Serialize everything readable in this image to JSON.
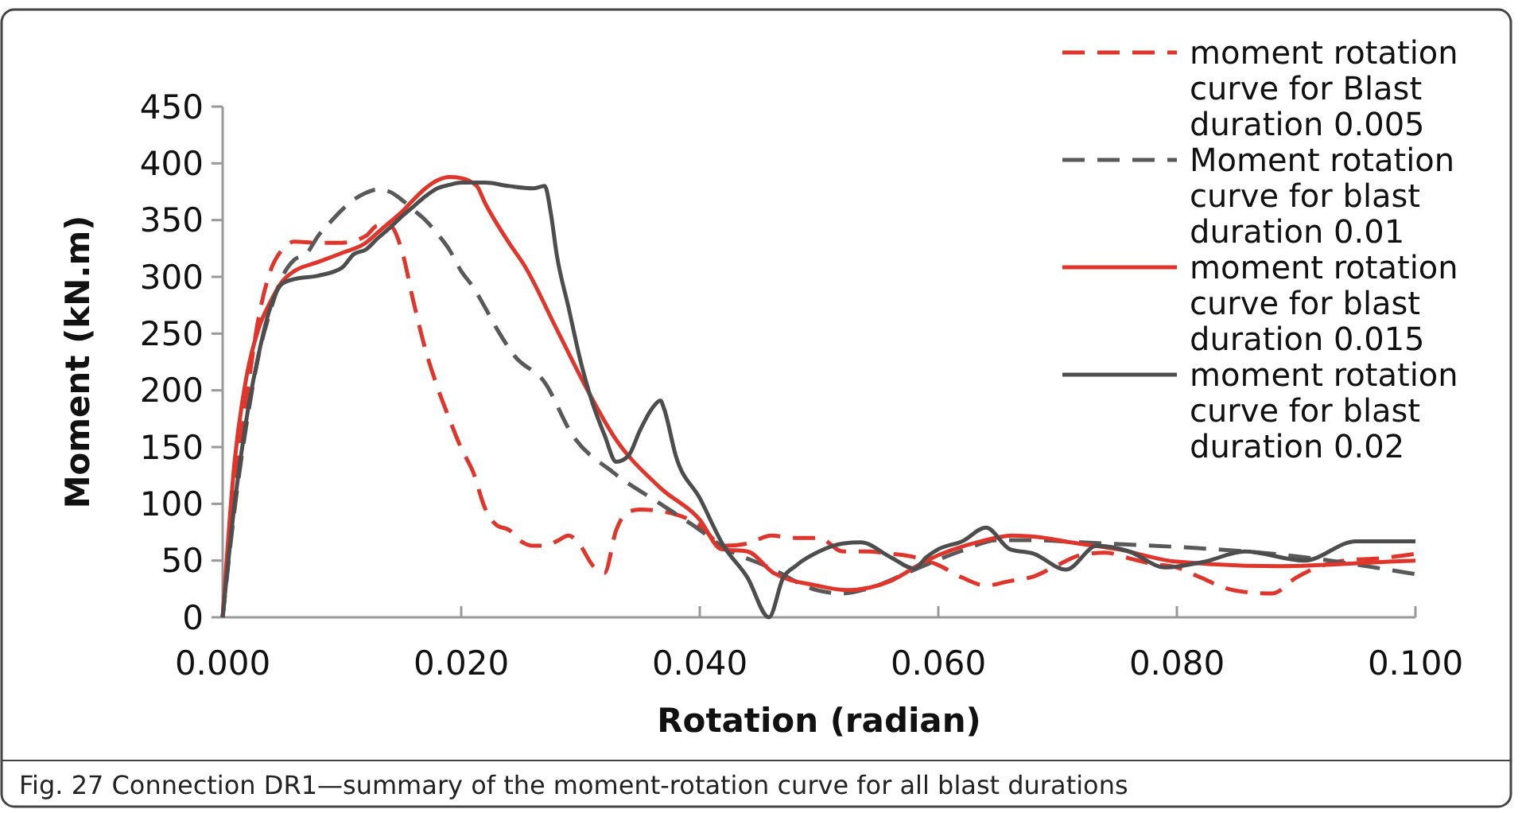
{
  "chart_data": {
    "type": "line",
    "xlabel": "Rotation  (radian)",
    "ylabel": "Moment (kN.m)",
    "xlim": [
      0,
      0.1
    ],
    "ylim": [
      0,
      450
    ],
    "xticks": [
      {
        "value": 0,
        "label": "0.000"
      },
      {
        "value": 0.02,
        "label": "0.020"
      },
      {
        "value": 0.04,
        "label": "0.040"
      },
      {
        "value": 0.06,
        "label": "0.060"
      },
      {
        "value": 0.08,
        "label": "0.080"
      },
      {
        "value": 0.1,
        "label": "0.100"
      }
    ],
    "yticks": [
      0,
      50,
      100,
      150,
      200,
      250,
      300,
      350,
      400,
      450
    ],
    "grid": false,
    "legend": "top right",
    "marker": "none",
    "annotations": [
      "Fig. 27 Connection DR1—summary of the moment-rotation curve for all blast durations"
    ],
    "series": [
      {
        "name": "moment rotation curve for Blast duration 0.005",
        "color": "#e0352b",
        "line_style": "dashed",
        "x": [
          0,
          0.001,
          0.002,
          0.003,
          0.004,
          0.005,
          0.006,
          0.008,
          0.01,
          0.012,
          0.013,
          0.014,
          0.015,
          0.016,
          0.017,
          0.018,
          0.019,
          0.02,
          0.021,
          0.022,
          0.023,
          0.024,
          0.025,
          0.026,
          0.027,
          0.028,
          0.029,
          0.03,
          0.031,
          0.032,
          0.033,
          0.034,
          0.035,
          0.037,
          0.04,
          0.042,
          0.044,
          0.046,
          0.048,
          0.05,
          0.052,
          0.054,
          0.056,
          0.058,
          0.06,
          0.062,
          0.064,
          0.066,
          0.068,
          0.07,
          0.072,
          0.074,
          0.076,
          0.078,
          0.08,
          0.082,
          0.084,
          0.086,
          0.088,
          0.09,
          0.092,
          0.094,
          0.097,
          0.1
        ],
        "values": [
          0,
          113,
          193,
          263,
          305,
          324,
          331,
          330,
          330,
          336,
          345,
          345,
          324,
          278,
          236,
          203,
          175,
          149,
          128,
          96,
          81,
          77,
          67,
          63,
          63,
          67,
          72,
          63,
          46,
          39,
          77,
          93,
          95,
          93,
          81,
          63,
          65,
          72,
          70,
          70,
          58,
          58,
          56,
          53,
          46,
          35,
          28,
          32,
          36,
          46,
          55,
          57,
          52,
          47,
          44,
          35,
          26,
          22,
          21,
          35,
          45,
          50,
          52,
          56
        ]
      },
      {
        "name": "Moment rotation curve for blast duration 0.01",
        "color": "#595959",
        "line_style": "dashed",
        "x": [
          0,
          0.001,
          0.002,
          0.003,
          0.004,
          0.005,
          0.006,
          0.007,
          0.008,
          0.009,
          0.01,
          0.011,
          0.012,
          0.013,
          0.014,
          0.015,
          0.016,
          0.017,
          0.018,
          0.019,
          0.02,
          0.021,
          0.022,
          0.023,
          0.0245,
          0.027,
          0.0293,
          0.0327,
          0.0367,
          0.04,
          0.0418,
          0.0458,
          0.0498,
          0.052,
          0.054,
          0.058,
          0.0618,
          0.065,
          0.068,
          0.072,
          0.08,
          0.089,
          0.1
        ],
        "values": [
          0,
          95,
          170,
          230,
          270,
          300,
          315,
          320,
          336,
          348,
          359,
          368,
          374,
          377,
          375,
          368,
          359,
          350,
          338,
          324,
          305,
          291,
          273,
          254,
          230,
          207,
          161,
          128,
          100,
          77,
          63,
          44,
          24,
          21,
          25,
          42,
          58,
          68,
          68,
          66,
          62,
          55,
          38
        ]
      },
      {
        "name": "moment rotation curve for blast duration 0.015",
        "color": "#e0352b",
        "line_style": "solid",
        "x": [
          0,
          0.001,
          0.002,
          0.003,
          0.004,
          0.005,
          0.006,
          0.008,
          0.01,
          0.012,
          0.013,
          0.014,
          0.015,
          0.016,
          0.017,
          0.018,
          0.019,
          0.02,
          0.0213,
          0.022,
          0.024,
          0.0253,
          0.028,
          0.0307,
          0.0327,
          0.0367,
          0.04,
          0.0418,
          0.044,
          0.0462,
          0.0498,
          0.0524,
          0.056,
          0.059,
          0.0636,
          0.0662,
          0.0689,
          0.0711,
          0.075,
          0.08,
          0.0887,
          0.0978,
          0.1
        ],
        "values": [
          0,
          137,
          212,
          254,
          278,
          296,
          305,
          313,
          321,
          330,
          339,
          348,
          357,
          368,
          378,
          385,
          388,
          387,
          380,
          365,
          330,
          310,
          254,
          198,
          161,
          114,
          86,
          60,
          58,
          39,
          28,
          24,
          32,
          50,
          67,
          72,
          70,
          66,
          60,
          49,
          45,
          49,
          50
        ]
      },
      {
        "name": "moment rotation curve for blast duration 0.02",
        "color": "#4d4d4d",
        "line_style": "solid",
        "x": [
          0,
          0.001,
          0.002,
          0.003,
          0.004,
          0.005,
          0.006,
          0.008,
          0.01,
          0.011,
          0.012,
          0.013,
          0.014,
          0.015,
          0.016,
          0.017,
          0.018,
          0.019,
          0.02,
          0.022,
          0.024,
          0.026,
          0.027,
          0.0275,
          0.028,
          0.029,
          0.03,
          0.031,
          0.032,
          0.033,
          0.034,
          0.035,
          0.036,
          0.0367,
          0.037,
          0.038,
          0.04,
          0.042,
          0.044,
          0.0458,
          0.047,
          0.048,
          0.05,
          0.052,
          0.0535,
          0.056,
          0.058,
          0.059,
          0.06,
          0.062,
          0.064,
          0.066,
          0.068,
          0.0707,
          0.0733,
          0.076,
          0.079,
          0.0823,
          0.0857,
          0.0907,
          0.095,
          0.1
        ],
        "values": [
          0,
          100,
          175,
          231,
          273,
          294,
          298,
          301,
          308,
          320,
          324,
          334,
          343,
          353,
          362,
          371,
          378,
          381,
          383,
          383,
          380,
          378,
          380,
          357,
          320,
          273,
          226,
          189,
          161,
          137,
          142,
          165,
          184,
          191,
          184,
          142,
          105,
          63,
          35,
          0,
          35,
          45,
          58,
          65,
          66,
          53,
          43,
          53,
          60,
          67,
          79,
          60,
          56,
          42,
          63,
          58,
          44,
          49,
          58,
          50,
          67,
          67
        ]
      }
    ]
  }
}
